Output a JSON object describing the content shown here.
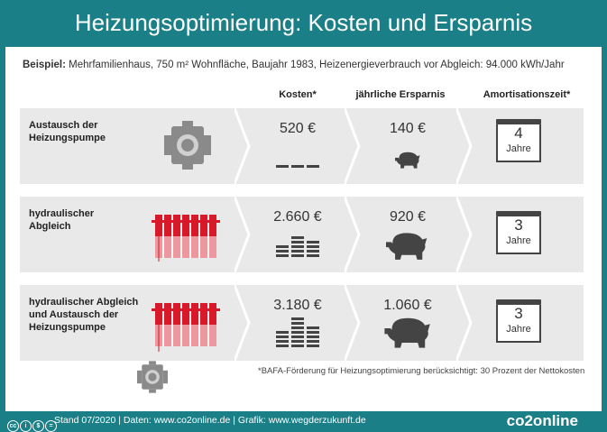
{
  "title": "Heizungsoptimierung: Kosten und Ersparnis",
  "example": {
    "label": "Beispiel:",
    "text": " Mehrfamilienhaus, 750 m² Wohnfläche, Baujahr 1983, Heizenergieverbrauch vor Abgleich: 94.000 kWh/Jahr"
  },
  "columns": {
    "cost": "Kosten*",
    "savings": "jährliche Ersparnis",
    "payback": "Amortisationszeit*"
  },
  "rows": [
    {
      "label_line1": "Austausch der",
      "label_line2": "Heizungspumpe",
      "label_line3": "",
      "cost": "520 €",
      "savings": "140 €",
      "payback": "4",
      "unit": "Jahre"
    },
    {
      "label_line1": "hydraulischer",
      "label_line2": "Abgleich",
      "label_line3": "",
      "cost": "2.660 €",
      "savings": "920 €",
      "payback": "3",
      "unit": "Jahre"
    },
    {
      "label_line1": "hydraulischer Abgleich",
      "label_line2": "und Austausch der",
      "label_line3": "Heizungspumpe",
      "cost": "3.180 €",
      "savings": "1.060 €",
      "payback": "3",
      "unit": "Jahre"
    }
  ],
  "footnote": "*BAFA-Förderung für Heizungsoptimierung berücksichtigt: 30 Prozent der Nettokosten",
  "footer": {
    "text": "Stand 07/2020  |  Daten: www.co2online.de  |  Grafik: www.wegderzukunft.de",
    "logo": "co2online"
  },
  "colors": {
    "teal": "#1a7f86",
    "red": "#d8192a",
    "gray": "#e9e9e9"
  },
  "icons": [
    "pump-icon",
    "radiator-icon",
    "coin-stack-icon",
    "piggy-bank-icon",
    "calendar-icon",
    "creative-commons-icon"
  ]
}
